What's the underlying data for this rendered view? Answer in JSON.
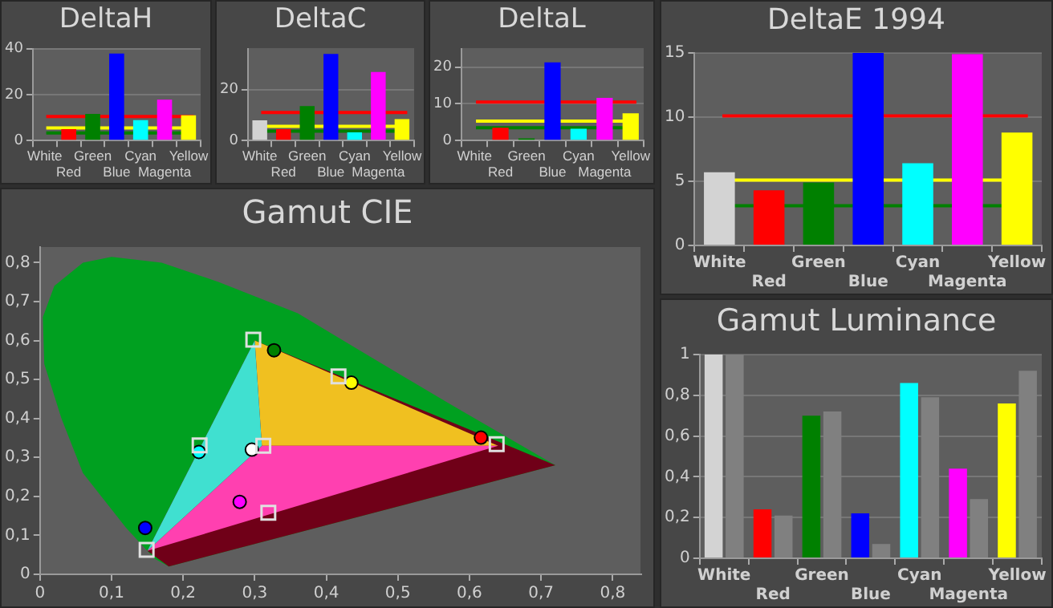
{
  "chart_data": [
    {
      "type": "bar",
      "title": "DeltaH",
      "categories": [
        "White",
        "Red",
        "Green",
        "Blue",
        "Cyan",
        "Magenta",
        "Yellow"
      ],
      "values": [
        0,
        5,
        11.6,
        37.9,
        8.9,
        17.8,
        11
      ],
      "colors": [
        "#d3d3d3",
        "#ff0000",
        "#008000",
        "#0000ff",
        "#00ffff",
        "#ff00ff",
        "#ffff00"
      ],
      "ylim": [
        0,
        40
      ],
      "yticks": [
        0,
        20,
        40
      ],
      "grid": "y",
      "ref_lines": [
        {
          "axis": "y",
          "value": 10.5,
          "color": "#ff0000"
        },
        {
          "axis": "y",
          "value": 5.5,
          "color": "#ffff00"
        },
        {
          "axis": "y",
          "value": 3.3,
          "color": "#008000"
        }
      ]
    },
    {
      "type": "bar",
      "title": "DeltaC",
      "categories": [
        "White",
        "Red",
        "Green",
        "Blue",
        "Cyan",
        "Magenta",
        "Yellow"
      ],
      "values": [
        7.9,
        4.5,
        13.5,
        34,
        3.2,
        26.9,
        8.4
      ],
      "colors": [
        "#d3d3d3",
        "#ff0000",
        "#008000",
        "#0000ff",
        "#00ffff",
        "#ff00ff",
        "#ffff00"
      ],
      "ylim": [
        0,
        36
      ],
      "yticks": [
        0,
        20
      ],
      "grid": "y",
      "ref_lines": [
        {
          "axis": "y",
          "value": 11,
          "color": "#ff0000"
        },
        {
          "axis": "y",
          "value": 5.6,
          "color": "#ffff00"
        },
        {
          "axis": "y",
          "value": 3.7,
          "color": "#008000"
        }
      ]
    },
    {
      "type": "bar",
      "title": "DeltaL",
      "categories": [
        "White",
        "Red",
        "Green",
        "Blue",
        "Cyan",
        "Magenta",
        "Yellow"
      ],
      "values": [
        0,
        3.5,
        0.6,
        21.3,
        3.2,
        11.6,
        7.4
      ],
      "colors": [
        "#d3d3d3",
        "#ff0000",
        "#008000",
        "#0000ff",
        "#00ffff",
        "#ff00ff",
        "#ffff00"
      ],
      "ylim": [
        0,
        25
      ],
      "yticks": [
        0,
        10,
        20
      ],
      "grid": "y",
      "ref_lines": [
        {
          "axis": "y",
          "value": 10.5,
          "color": "#ff0000"
        },
        {
          "axis": "y",
          "value": 5.3,
          "color": "#ffff00"
        },
        {
          "axis": "y",
          "value": 3.5,
          "color": "#008000"
        }
      ]
    },
    {
      "type": "bar",
      "title": "DeltaE 1994",
      "categories": [
        "White",
        "Red",
        "Green",
        "Blue",
        "Cyan",
        "Magenta",
        "Yellow"
      ],
      "values": [
        5.7,
        4.3,
        4.9,
        15,
        6.4,
        14.9,
        8.8
      ],
      "colors": [
        "#d3d3d3",
        "#ff0000",
        "#008000",
        "#0000ff",
        "#00ffff",
        "#ff00ff",
        "#ffff00"
      ],
      "ylim": [
        0,
        15
      ],
      "yticks": [
        0,
        5,
        10,
        15
      ],
      "grid": "y",
      "ref_lines": [
        {
          "axis": "y",
          "value": 10.1,
          "color": "#ff0000"
        },
        {
          "axis": "y",
          "value": 5.1,
          "color": "#ffff00"
        },
        {
          "axis": "y",
          "value": 3.1,
          "color": "#008000"
        }
      ]
    },
    {
      "type": "scatter",
      "title": "Gamut CIE",
      "xlim": [
        0,
        0.84
      ],
      "ylim": [
        0,
        0.84
      ],
      "xticks": [
        0,
        {
          "value": 0.1,
          "label": "0,1"
        },
        {
          "value": 0.2,
          "label": "0,2"
        },
        {
          "value": 0.3,
          "label": "0,3"
        },
        {
          "value": 0.4,
          "label": "0,4"
        },
        {
          "value": 0.5,
          "label": "0,5"
        },
        {
          "value": 0.6,
          "label": "0,6"
        },
        {
          "value": 0.7,
          "label": "0,7"
        },
        {
          "value": 0.8,
          "label": "0,8"
        }
      ],
      "yticks": [
        0,
        {
          "value": 0.1,
          "label": "0,1"
        },
        {
          "value": 0.2,
          "label": "0,2"
        },
        {
          "value": 0.3,
          "label": "0,3"
        },
        {
          "value": 0.4,
          "label": "0,4"
        },
        {
          "value": 0.5,
          "label": "0,5"
        },
        {
          "value": 0.6,
          "label": "0,6"
        },
        {
          "value": 0.7,
          "label": "0,7"
        },
        {
          "value": 0.8,
          "label": "0,8"
        }
      ],
      "series": [
        {
          "type": "area",
          "color": "#00a020",
          "x": [
            0.72,
            0.57,
            0.46,
            0.36,
            0.25,
            0.17,
            0.1,
            0.06,
            0.02,
            0.004,
            0.006,
            0.03,
            0.06,
            0.12,
            0.16,
            0.18
          ],
          "values": [
            0.28,
            0.44,
            0.56,
            0.67,
            0.75,
            0.8,
            0.815,
            0.8,
            0.74,
            0.66,
            0.54,
            0.4,
            0.26,
            0.12,
            0.04,
            0.02
          ]
        },
        {
          "type": "area",
          "color": "#700018",
          "x": [
            0.3,
            0.72,
            0.18,
            0.15
          ],
          "values": [
            0.6,
            0.28,
            0.02,
            0.06
          ]
        },
        {
          "type": "area",
          "color": "#f0c020",
          "x": [
            0.31,
            0.3,
            0.64
          ],
          "values": [
            0.33,
            0.6,
            0.33
          ]
        },
        {
          "type": "area",
          "color": "#ff40b0",
          "x": [
            0.31,
            0.64,
            0.15
          ],
          "values": [
            0.33,
            0.33,
            0.06
          ]
        },
        {
          "type": "area",
          "color": "#40e0d0",
          "x": [
            0.31,
            0.15,
            0.3
          ],
          "values": [
            0.33,
            0.06,
            0.6
          ]
        },
        {
          "marker": "square",
          "color": "#e0e0e0",
          "x": [
            0.312,
            0.638,
            0.298,
            0.149,
            0.223,
            0.319,
            0.417
          ],
          "values": [
            0.33,
            0.334,
            0.602,
            0.063,
            0.331,
            0.158,
            0.508
          ]
        },
        {
          "marker": "circle",
          "colors": [
            "#ffffff",
            "#ff0000",
            "#008000",
            "#0000ff",
            "#00ffff",
            "#ff00ff",
            "#ffff00"
          ],
          "x": [
            0.296,
            0.616,
            0.327,
            0.147,
            0.222,
            0.279,
            0.435
          ],
          "values": [
            0.32,
            0.351,
            0.575,
            0.119,
            0.314,
            0.186,
            0.492
          ]
        }
      ]
    },
    {
      "type": "bar",
      "title": "Gamut Luminance",
      "categories": [
        "White",
        "Red",
        "Green",
        "Blue",
        "Cyan",
        "Magenta",
        "Yellow"
      ],
      "ylim": [
        0,
        1
      ],
      "yticks": [
        0,
        {
          "value": 0.2,
          "label": "0,2"
        },
        {
          "value": 0.4,
          "label": "0,4"
        },
        {
          "value": 0.6,
          "label": "0,6"
        },
        {
          "value": 0.8,
          "label": "0,8"
        },
        1
      ],
      "grid": "y",
      "series": [
        {
          "colors": [
            "#d3d3d3",
            "#ff0000",
            "#008000",
            "#0000ff",
            "#00ffff",
            "#ff00ff",
            "#ffff00"
          ],
          "values": [
            1,
            0.24,
            0.7,
            0.22,
            0.86,
            0.44,
            0.76
          ]
        },
        {
          "color": "#808080",
          "values": [
            1,
            0.21,
            0.72,
            0.07,
            0.79,
            0.29,
            0.92
          ]
        }
      ]
    }
  ]
}
